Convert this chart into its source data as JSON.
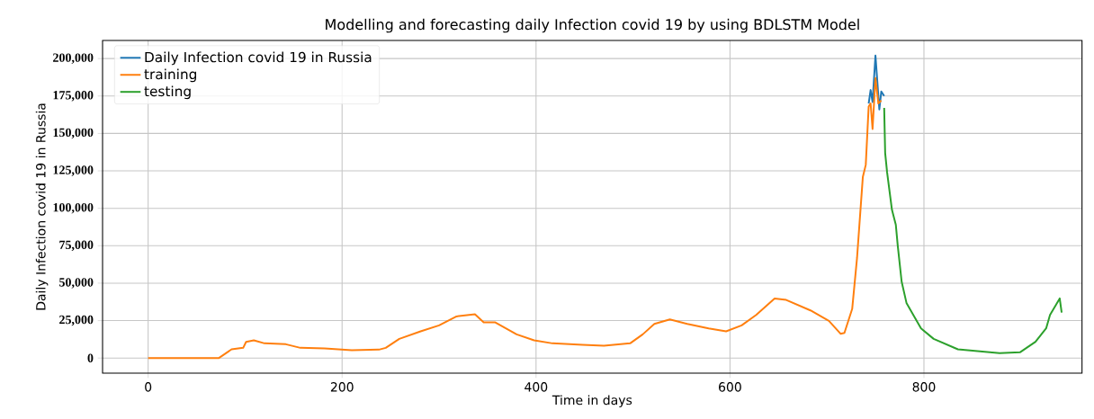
{
  "chart_data": {
    "type": "line",
    "title": "Modelling and forecasting daily Infection covid 19 by using BDLSTM Model",
    "xlabel": "Time in days",
    "ylabel": "Daily Infection covid 19 in Russia",
    "xlim": [
      -47,
      963
    ],
    "ylim": [
      -10100,
      212100
    ],
    "xticks": [
      0,
      200,
      400,
      600,
      800
    ],
    "yticks": [
      {
        "value": 0,
        "label": "0"
      },
      {
        "value": 25000,
        "label": "25,000"
      },
      {
        "value": 50000,
        "label": "50,000"
      },
      {
        "value": 75000,
        "label": "75,000"
      },
      {
        "value": 100000,
        "label": "100,000"
      },
      {
        "value": 125000,
        "label": "125,000"
      },
      {
        "value": 150000,
        "label": "150,000"
      },
      {
        "value": 175000,
        "label": "175,000"
      },
      {
        "value": 200000,
        "label": "200,000"
      }
    ],
    "grid": true,
    "legend": "top left",
    "series": [
      {
        "name": "Daily Infection covid 19 in Russia",
        "color": "#1f77b4",
        "x": [
          743,
          745,
          747,
          750,
          754,
          756,
          759
        ],
        "values": [
          170000,
          179000,
          171000,
          202000,
          166000,
          178000,
          175000
        ]
      },
      {
        "name": "training",
        "color": "#ff7f0e",
        "x": [
          0,
          73,
          86,
          98,
          101,
          109,
          120,
          142,
          157,
          182,
          210,
          238,
          245,
          259,
          281,
          300,
          318,
          337,
          346,
          358,
          380,
          398,
          417,
          448,
          470,
          497,
          510,
          522,
          538,
          556,
          578,
          596,
          612,
          627,
          646,
          658,
          683,
          702,
          714,
          718,
          726,
          731,
          737,
          740,
          743,
          745,
          747,
          750,
          753,
          756
        ],
        "values": [
          0,
          0,
          5800,
          6800,
          10800,
          11800,
          9800,
          9200,
          6800,
          6400,
          5200,
          5600,
          6800,
          12800,
          17800,
          21800,
          27800,
          29200,
          23800,
          23800,
          15800,
          11800,
          9800,
          8800,
          8200,
          9800,
          15800,
          22800,
          25800,
          22800,
          19800,
          17800,
          21800,
          28800,
          39800,
          38800,
          31800,
          24800,
          16200,
          16800,
          32800,
          66800,
          121000,
          129000,
          168000,
          170000,
          153000,
          187000,
          170000,
          172000
        ]
      },
      {
        "name": "testing",
        "color": "#2ca02c",
        "x": [
          759,
          760,
          762,
          767,
          771,
          773,
          777,
          782,
          797,
          810,
          835,
          878,
          899,
          915,
          926,
          930,
          940,
          942
        ],
        "values": [
          167000,
          137000,
          124000,
          99000,
          89000,
          75000,
          51000,
          36800,
          19800,
          12800,
          5800,
          3200,
          3800,
          10800,
          19800,
          28800,
          39800,
          30400
        ]
      }
    ]
  }
}
